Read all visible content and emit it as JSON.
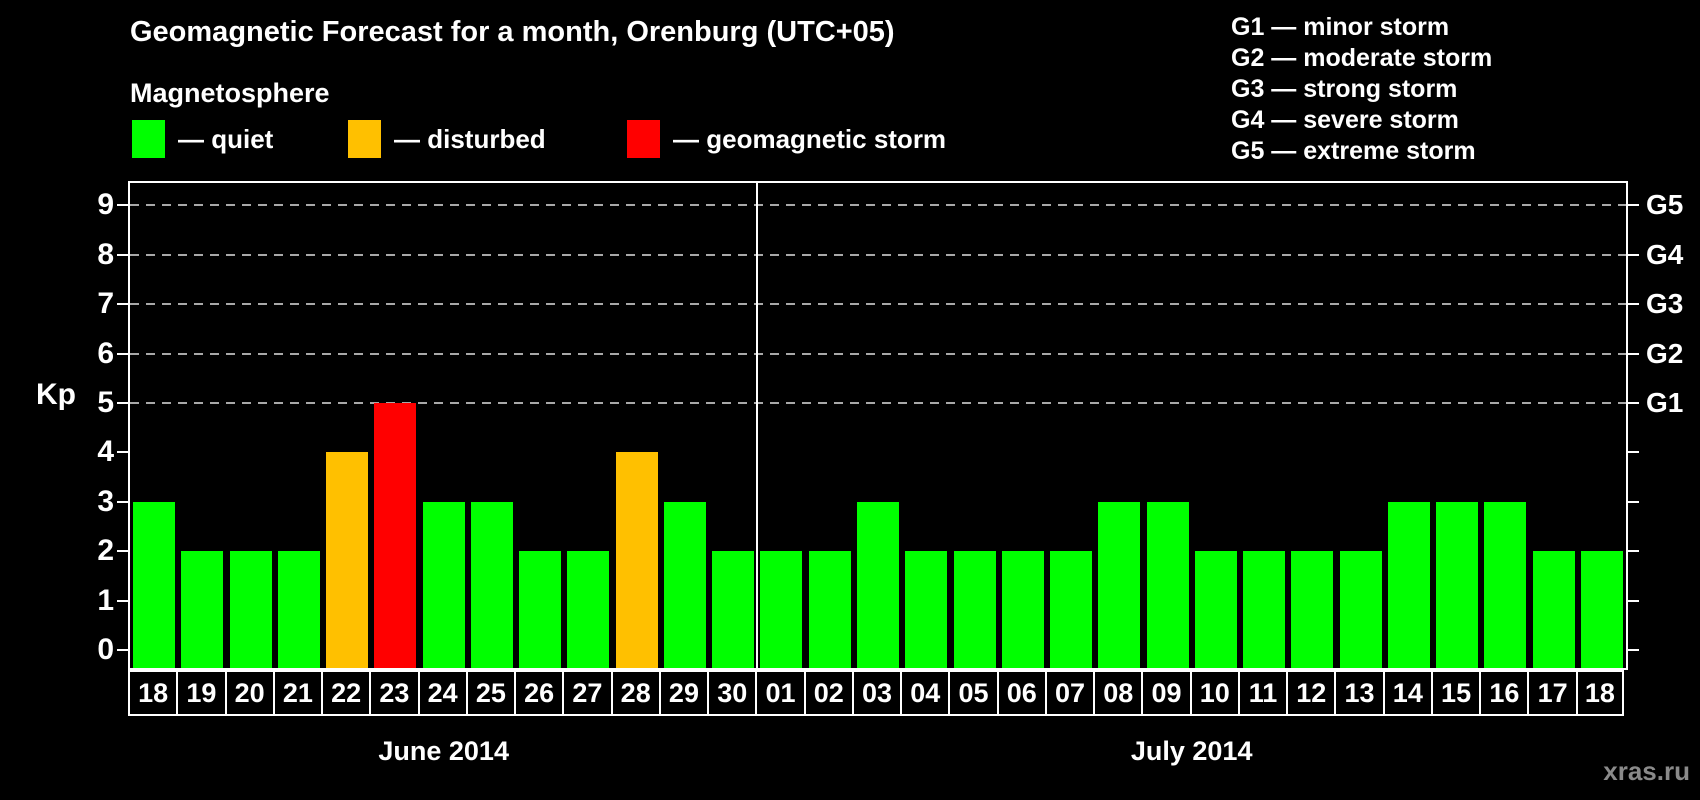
{
  "header": {
    "title": "Geomagnetic Forecast for a month, Orenburg (UTC+05)",
    "subtitle": "Magnetosphere"
  },
  "legend": {
    "items": [
      {
        "key": "quiet",
        "label": "— quiet",
        "color": "#00ff00"
      },
      {
        "key": "disturbed",
        "label": "— disturbed",
        "color": "#ffc000"
      },
      {
        "key": "storm",
        "label": "— geomagnetic storm",
        "color": "#ff0000"
      }
    ]
  },
  "g_scale_legend": {
    "items": [
      "G1 — minor storm",
      "G2 — moderate storm",
      "G3 — strong storm",
      "G4 — severe storm",
      "G5 — extreme storm"
    ]
  },
  "watermark": "xras.ru",
  "chart_data": {
    "type": "bar",
    "ylabel": "Kp",
    "ylim": [
      -0.4,
      9.55
    ],
    "yticks": [
      0,
      1,
      2,
      3,
      4,
      5,
      6,
      7,
      8,
      9
    ],
    "gridlines": [
      5,
      6,
      7,
      8,
      9
    ],
    "grid_style": "dashed-gray-top-half-only",
    "right_axis": [
      {
        "kp": 5,
        "label": "G1"
      },
      {
        "kp": 6,
        "label": "G2"
      },
      {
        "kp": 7,
        "label": "G3"
      },
      {
        "kp": 8,
        "label": "G4"
      },
      {
        "kp": 9,
        "label": "G5"
      }
    ],
    "status_colors": {
      "quiet": "#00ff00",
      "disturbed": "#ffc000",
      "storm": "#ff0000"
    },
    "months": [
      {
        "label": "June 2014",
        "bars": [
          {
            "day": "18",
            "kp": 3,
            "status": "quiet"
          },
          {
            "day": "19",
            "kp": 2,
            "status": "quiet"
          },
          {
            "day": "20",
            "kp": 2,
            "status": "quiet"
          },
          {
            "day": "21",
            "kp": 2,
            "status": "quiet"
          },
          {
            "day": "22",
            "kp": 4,
            "status": "disturbed"
          },
          {
            "day": "23",
            "kp": 5,
            "status": "storm"
          },
          {
            "day": "24",
            "kp": 3,
            "status": "quiet"
          },
          {
            "day": "25",
            "kp": 3,
            "status": "quiet"
          },
          {
            "day": "26",
            "kp": 2,
            "status": "quiet"
          },
          {
            "day": "27",
            "kp": 2,
            "status": "quiet"
          },
          {
            "day": "28",
            "kp": 4,
            "status": "disturbed"
          },
          {
            "day": "29",
            "kp": 3,
            "status": "quiet"
          },
          {
            "day": "30",
            "kp": 2,
            "status": "quiet"
          }
        ]
      },
      {
        "label": "July 2014",
        "bars": [
          {
            "day": "01",
            "kp": 2,
            "status": "quiet"
          },
          {
            "day": "02",
            "kp": 2,
            "status": "quiet"
          },
          {
            "day": "03",
            "kp": 3,
            "status": "quiet"
          },
          {
            "day": "04",
            "kp": 2,
            "status": "quiet"
          },
          {
            "day": "05",
            "kp": 2,
            "status": "quiet"
          },
          {
            "day": "06",
            "kp": 2,
            "status": "quiet"
          },
          {
            "day": "07",
            "kp": 2,
            "status": "quiet"
          },
          {
            "day": "08",
            "kp": 3,
            "status": "quiet"
          },
          {
            "day": "09",
            "kp": 3,
            "status": "quiet"
          },
          {
            "day": "10",
            "kp": 2,
            "status": "quiet"
          },
          {
            "day": "11",
            "kp": 2,
            "status": "quiet"
          },
          {
            "day": "12",
            "kp": 2,
            "status": "quiet"
          },
          {
            "day": "13",
            "kp": 2,
            "status": "quiet"
          },
          {
            "day": "14",
            "kp": 3,
            "status": "quiet"
          },
          {
            "day": "15",
            "kp": 3,
            "status": "quiet"
          },
          {
            "day": "16",
            "kp": 3,
            "status": "quiet"
          },
          {
            "day": "17",
            "kp": 2,
            "status": "quiet"
          },
          {
            "day": "18",
            "kp": 2,
            "status": "quiet"
          }
        ]
      }
    ]
  }
}
